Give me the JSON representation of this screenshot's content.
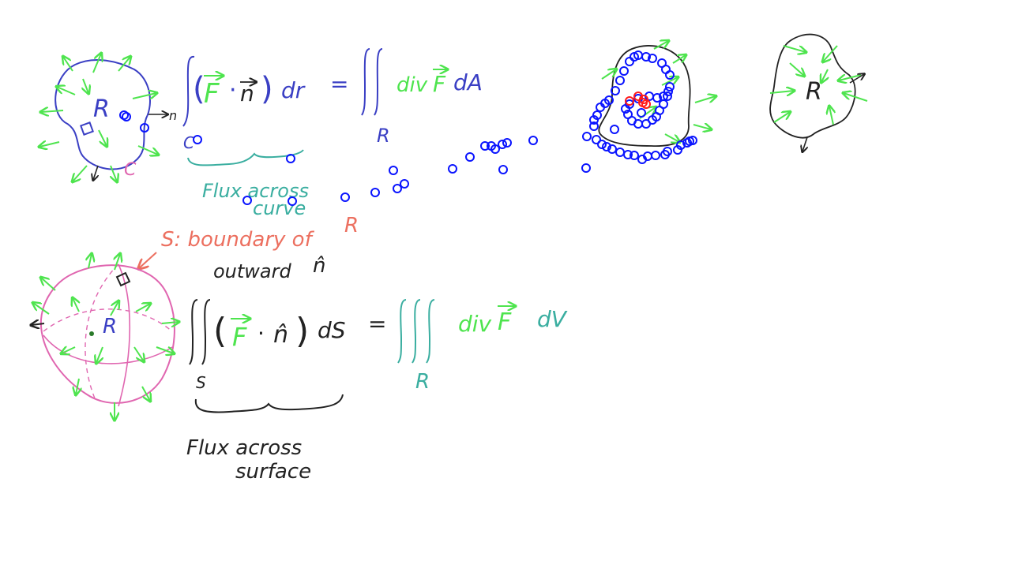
{
  "colors": {
    "blue": "#3a3fc4",
    "green": "#4ee44e",
    "teal": "#3aaea0",
    "pink": "#e066b0",
    "salmon": "#ec6f5f",
    "ink": "#222222",
    "marker_blue": "#0a14ff",
    "marker_red": "#ff1a1a"
  },
  "top": {
    "region_label": "R",
    "curve_label": "C",
    "normal_label": "n",
    "lhs_vector_F": "F",
    "lhs_dot": "·",
    "lhs_vector_n": "n",
    "lhs_dr": "dr",
    "equals": "=",
    "rhs_div": "div",
    "rhs_F": "F",
    "rhs_dA": "dA",
    "int_sub_C": "C",
    "int_sub_R": "R",
    "brace_caption_line1": "Flux  across",
    "brace_caption_line2": "curve"
  },
  "blob_right": {
    "region_label": "R"
  },
  "middle": {
    "boundary_note": "S: boundary of",
    "boundary_region": "R",
    "outward_text": "outward",
    "outward_n": "n̂"
  },
  "bottom": {
    "region_label": "R",
    "lhs_F": "F",
    "lhs_dot": "·",
    "lhs_n": "n̂",
    "lhs_dS": "dS",
    "equals": "=",
    "rhs_div": "div",
    "rhs_F": "F",
    "rhs_dV": "dV",
    "int_sub_S": "S",
    "int_sub_R": "R",
    "brace_caption_line1": "Flux  across",
    "brace_caption_line2": "surface"
  }
}
